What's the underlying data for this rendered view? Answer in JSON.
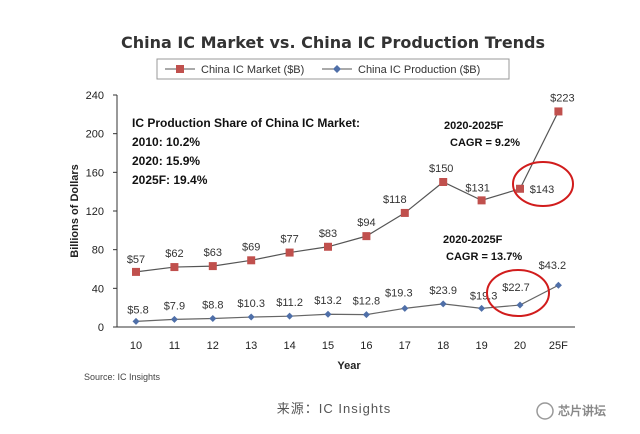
{
  "chart_data": {
    "type": "line",
    "title": "China IC Market vs. China IC Production Trends",
    "categories": [
      "10",
      "11",
      "12",
      "13",
      "14",
      "15",
      "16",
      "17",
      "18",
      "19",
      "20",
      "25F"
    ],
    "xlabel": "Year",
    "ylabel": "Billions of Dollars",
    "ylim": [
      0,
      240
    ],
    "yticks": [
      0,
      40,
      80,
      120,
      160,
      200,
      240
    ],
    "series": [
      {
        "name": "China IC Market ($B)",
        "color": "#c0504d",
        "marker": "square",
        "values": [
          57,
          62,
          63,
          69,
          77,
          83,
          94,
          118,
          150,
          131,
          143,
          223
        ],
        "labels": [
          "$57",
          "$62",
          "$63",
          "$69",
          "$77",
          "$83",
          "$94",
          "$118",
          "$150",
          "$131",
          "$143",
          "$223"
        ]
      },
      {
        "name": "China IC Production ($B)",
        "color": "#4f6fa8",
        "marker": "diamond",
        "values": [
          5.8,
          7.9,
          8.8,
          10.3,
          11.2,
          13.2,
          12.8,
          19.3,
          23.9,
          19.3,
          22.7,
          43.2
        ],
        "labels": [
          "$5.8",
          "$7.9",
          "$8.8",
          "$10.3",
          "$11.2",
          "$13.2",
          "$12.8",
          "$19.3",
          "$23.9",
          "$19.3",
          "$22.7",
          "$43.2"
        ]
      }
    ],
    "annotations": {
      "share_title": "IC Production Share of China IC Market:",
      "share_lines": [
        "2010: 10.2%",
        "2020: 15.9%",
        "2025F: 19.4%"
      ],
      "market_cagr_period": "2020-2025F",
      "market_cagr": "CAGR = 9.2%",
      "production_cagr_period": "2020-2025F",
      "production_cagr": "CAGR = 13.7%"
    },
    "legend_position": "top",
    "grid": false
  },
  "source": "Source: IC Insights",
  "footer": "来源：IC Insights",
  "watermark": "芯片讲坛",
  "colors": {
    "highlight_circle": "#d11c1c",
    "market_line": "#555555",
    "production_line": "#666666"
  }
}
